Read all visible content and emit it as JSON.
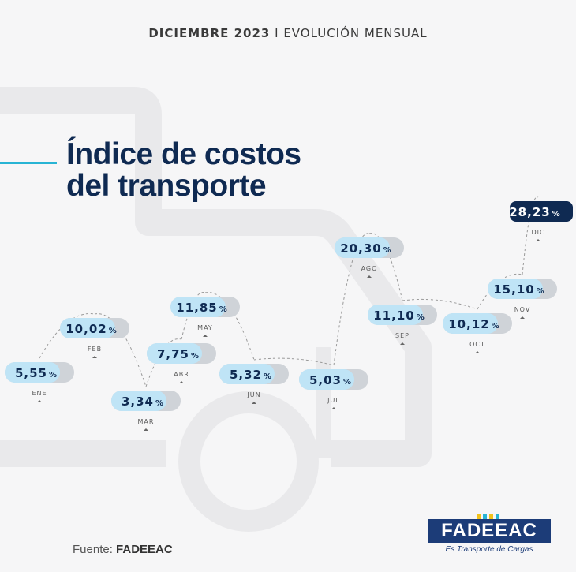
{
  "header": {
    "bold": "DICIEMBRE 2023",
    "separator": "I",
    "rest": "EVOLUCIÓN MENSUAL"
  },
  "title": {
    "line1": "Índice de costos",
    "line2": "del transporte"
  },
  "source": {
    "label": "Fuente:",
    "value": "FADEEAC"
  },
  "logo": {
    "name": "FADEEAC",
    "tagline": "Es Transporte de Cargas"
  },
  "colors": {
    "pill_light": "#bfe4f6",
    "pill_grey": "#cfd3d8",
    "pill_dark": "#0f2a52",
    "value_text": "#0f2a52",
    "accent": "#28b4d4",
    "connector": "#9a9a9a"
  },
  "chart_data": {
    "type": "line",
    "categories": [
      "ENE",
      "FEB",
      "MAR",
      "ABR",
      "MAY",
      "JUN",
      "JUL",
      "AGO",
      "SEP",
      "OCT",
      "NOV",
      "DIC"
    ],
    "values": [
      5.55,
      10.02,
      3.34,
      7.75,
      11.85,
      5.32,
      5.03,
      20.3,
      11.1,
      10.12,
      15.1,
      28.23
    ],
    "value_labels": [
      "5,55",
      "10,02",
      "3,34",
      "7,75",
      "11,85",
      "5,32",
      "5,03",
      "20,30",
      "11,10",
      "10,12",
      "15,10",
      "28,23"
    ],
    "unit": "%",
    "title": "Índice de costos del transporte",
    "ylim": [
      0,
      30
    ],
    "highlight": "DIC"
  }
}
